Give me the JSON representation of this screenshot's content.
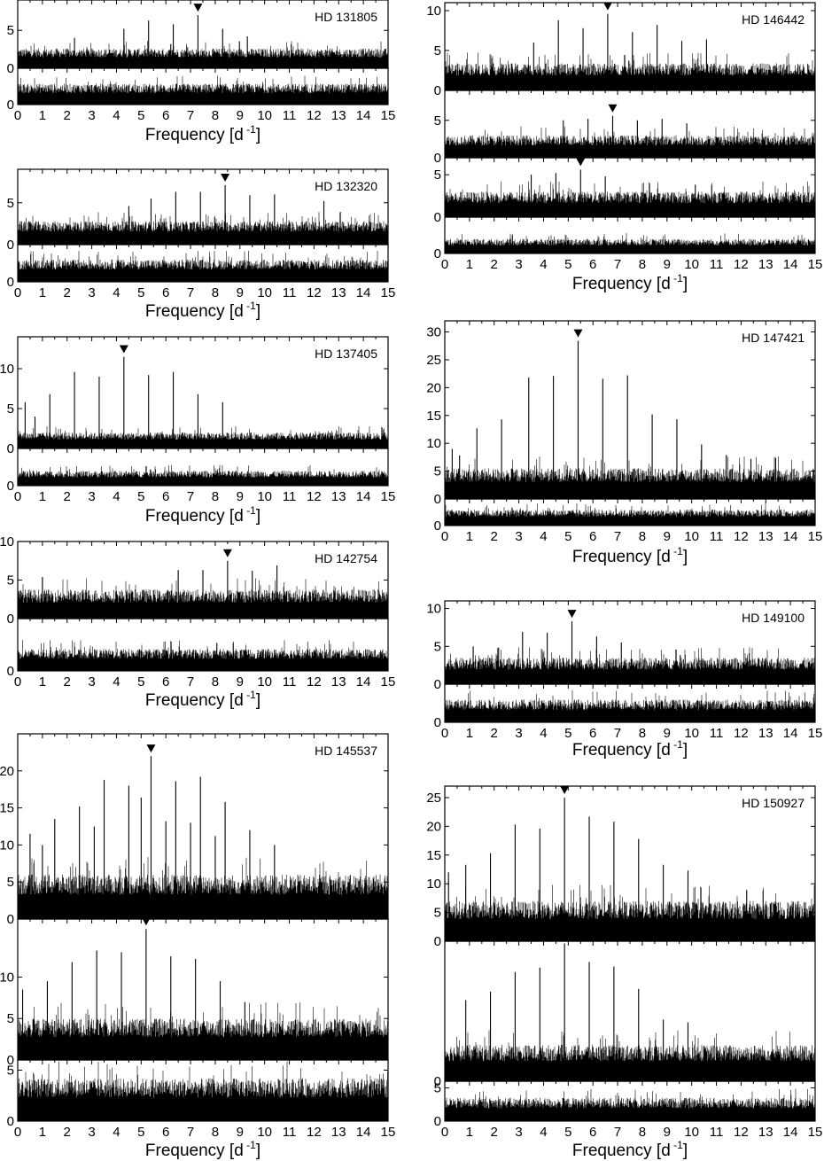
{
  "figure": {
    "x_axis_label": "Frequency [d",
    "x_axis_unit_exponent": "-1",
    "x_axis_label_close": "]",
    "x_ticks": [
      "0",
      "1",
      "2",
      "3",
      "4",
      "5",
      "6",
      "7",
      "8",
      "9",
      "10",
      "11",
      "12",
      "13",
      "14",
      "15"
    ]
  },
  "chart_data": [
    {
      "type": "line",
      "star": "HD 131805",
      "xlabel": "Frequency [d-1]",
      "xlim": [
        0,
        15
      ],
      "panels": [
        {
          "ylim": [
            0,
            9
          ],
          "yticks": [
            0,
            5
          ],
          "noise_level": 2.6,
          "marked_peak_x": 7.3,
          "peaks": [
            [
              4.3,
              5.2
            ],
            [
              5.3,
              6.3
            ],
            [
              6.3,
              5.8
            ],
            [
              7.3,
              7.0
            ],
            [
              8.3,
              5.2
            ],
            [
              9.3,
              4.2
            ],
            [
              2.3,
              4.0
            ]
          ]
        },
        {
          "ylim": [
            0,
            4
          ],
          "yticks": [
            0
          ],
          "noise_level": 2.3,
          "marked_peak_x": null,
          "peaks": []
        }
      ]
    },
    {
      "type": "line",
      "star": "HD 132320",
      "xlabel": "Frequency [d-1]",
      "xlim": [
        0,
        15
      ],
      "panels": [
        {
          "ylim": [
            0,
            9
          ],
          "yticks": [
            0,
            5
          ],
          "noise_level": 2.8,
          "marked_peak_x": 8.4,
          "peaks": [
            [
              4.5,
              4.6
            ],
            [
              5.4,
              5.5
            ],
            [
              6.4,
              6.3
            ],
            [
              7.4,
              6.3
            ],
            [
              8.4,
              7.1
            ],
            [
              9.4,
              5.9
            ],
            [
              10.4,
              6.0
            ],
            [
              12.4,
              5.2
            ]
          ]
        },
        {
          "ylim": [
            0,
            4
          ],
          "yticks": [
            0
          ],
          "noise_level": 2.4,
          "marked_peak_x": null,
          "peaks": []
        }
      ]
    },
    {
      "type": "line",
      "star": "HD 137405",
      "xlabel": "Frequency [d-1]",
      "xlim": [
        0,
        15
      ],
      "panels": [
        {
          "ylim": [
            0,
            14
          ],
          "yticks": [
            0,
            5,
            10
          ],
          "noise_level": 2.0,
          "marked_peak_x": 4.3,
          "peaks": [
            [
              0.3,
              5.8
            ],
            [
              1.3,
              6.8
            ],
            [
              2.3,
              9.6
            ],
            [
              3.3,
              9.0
            ],
            [
              4.3,
              11.5
            ],
            [
              5.3,
              9.2
            ],
            [
              6.3,
              9.6
            ],
            [
              7.3,
              6.8
            ],
            [
              8.3,
              5.8
            ],
            [
              0.7,
              4.0
            ]
          ]
        },
        {
          "ylim": [
            0,
            4
          ],
          "yticks": [
            0
          ],
          "noise_level": 1.6,
          "marked_peak_x": null,
          "peaks": []
        }
      ]
    },
    {
      "type": "line",
      "star": "HD 142754",
      "xlabel": "Frequency [d-1]",
      "xlim": [
        0,
        15
      ],
      "panels": [
        {
          "ylim": [
            0,
            10
          ],
          "yticks": [
            0,
            5,
            10
          ],
          "noise_level": 3.8,
          "marked_peak_x": 8.5,
          "peaks": [
            [
              6.5,
              6.3
            ],
            [
              7.5,
              6.3
            ],
            [
              8.5,
              7.5
            ],
            [
              9.5,
              6.2
            ],
            [
              10.5,
              6.9
            ],
            [
              1.0,
              5.4
            ]
          ]
        },
        {
          "ylim": [
            0,
            10
          ],
          "yticks": [
            0
          ],
          "noise_level": 4.2,
          "marked_peak_x": null,
          "peaks": []
        }
      ]
    },
    {
      "type": "line",
      "star": "HD 145537",
      "xlabel": "Frequency [d-1]",
      "xlim": [
        0,
        15
      ],
      "panels": [
        {
          "ylim": [
            0,
            25
          ],
          "yticks": [
            0,
            5,
            10,
            15,
            20
          ],
          "noise_level": 6.0,
          "marked_peak_x": 5.4,
          "peaks": [
            [
              0.5,
              11.5
            ],
            [
              1.5,
              13.5
            ],
            [
              2.5,
              15.2
            ],
            [
              3.5,
              18.8
            ],
            [
              4.5,
              18.0
            ],
            [
              5.4,
              22.0
            ],
            [
              6.4,
              18.6
            ],
            [
              7.4,
              19.2
            ],
            [
              8.4,
              15.8
            ],
            [
              9.4,
              12.0
            ],
            [
              1.0,
              10.0
            ],
            [
              3.1,
              12.5
            ],
            [
              5.0,
              16.4
            ],
            [
              6.0,
              13.2
            ],
            [
              7.0,
              13.0
            ],
            [
              8.0,
              11.2
            ],
            [
              10.4,
              10.0
            ]
          ]
        },
        {
          "ylim": [
            0,
            17
          ],
          "yticks": [
            0,
            5,
            10
          ],
          "noise_level": 5.0,
          "marked_peak_x": 5.2,
          "peaks": [
            [
              0.2,
              8.5
            ],
            [
              1.2,
              9.5
            ],
            [
              2.2,
              11.8
            ],
            [
              3.2,
              13.2
            ],
            [
              4.2,
              13.0
            ],
            [
              5.2,
              15.8
            ],
            [
              6.2,
              12.5
            ],
            [
              7.2,
              12.2
            ],
            [
              8.2,
              9.5
            ],
            [
              9.2,
              7.0
            ]
          ]
        },
        {
          "ylim": [
            0,
            6
          ],
          "yticks": [
            0,
            5
          ],
          "noise_level": 4.2,
          "marked_peak_x": null,
          "peaks": []
        }
      ]
    },
    {
      "type": "line",
      "star": "HD 146442",
      "xlabel": "Frequency [d-1]",
      "xlim": [
        0,
        15
      ],
      "panels": [
        {
          "ylim": [
            0,
            11
          ],
          "yticks": [
            0,
            5,
            10
          ],
          "noise_level": 3.4,
          "marked_peak_x": 6.6,
          "peaks": [
            [
              4.6,
              8.8
            ],
            [
              5.6,
              7.8
            ],
            [
              6.6,
              9.6
            ],
            [
              7.6,
              7.3
            ],
            [
              8.6,
              8.2
            ],
            [
              9.6,
              6.2
            ],
            [
              10.6,
              6.4
            ],
            [
              3.6,
              6.0
            ]
          ]
        },
        {
          "ylim": [
            0,
            9
          ],
          "yticks": [
            0,
            5
          ],
          "noise_level": 3.0,
          "marked_peak_x": 6.8,
          "peaks": [
            [
              4.8,
              5.0
            ],
            [
              5.8,
              5.2
            ],
            [
              6.8,
              5.6
            ],
            [
              7.8,
              5.0
            ],
            [
              8.8,
              5.2
            ],
            [
              9.8,
              4.6
            ]
          ]
        },
        {
          "ylim": [
            0,
            7
          ],
          "yticks": [
            0,
            5
          ],
          "noise_level": 3.0,
          "marked_peak_x": 5.5,
          "peaks": [
            [
              3.5,
              5.0
            ],
            [
              4.5,
              5.2
            ],
            [
              5.5,
              5.6
            ],
            [
              6.5,
              4.8
            ]
          ]
        },
        {
          "ylim": [
            0,
            5
          ],
          "yticks": [
            0
          ],
          "noise_level": 2.0,
          "marked_peak_x": null,
          "peaks": []
        }
      ]
    },
    {
      "type": "line",
      "star": "HD 147421",
      "xlabel": "Frequency [d-1]",
      "xlim": [
        0,
        15
      ],
      "panels": [
        {
          "ylim": [
            0,
            32
          ],
          "yticks": [
            0,
            5,
            10,
            15,
            20,
            25,
            30
          ],
          "noise_level": 5.5,
          "marked_peak_x": 5.4,
          "peaks": [
            [
              0.3,
              9.0
            ],
            [
              1.3,
              12.7
            ],
            [
              2.3,
              14.3
            ],
            [
              3.4,
              21.8
            ],
            [
              4.4,
              22.1
            ],
            [
              5.4,
              28.4
            ],
            [
              6.4,
              21.6
            ],
            [
              7.4,
              22.2
            ],
            [
              8.4,
              15.2
            ],
            [
              9.4,
              14.3
            ],
            [
              10.4,
              9.8
            ],
            [
              11.4,
              7.9
            ],
            [
              12.4,
              7.2
            ],
            [
              13.4,
              7.4
            ],
            [
              0.6,
              7.8
            ]
          ]
        },
        {
          "ylim": [
            0,
            4
          ],
          "yticks": [
            0
          ],
          "noise_level": 2.4,
          "marked_peak_x": null,
          "peaks": []
        }
      ]
    },
    {
      "type": "line",
      "star": "HD 149100",
      "xlabel": "Frequency [d-1]",
      "xlim": [
        0,
        15
      ],
      "panels": [
        {
          "ylim": [
            0,
            11
          ],
          "yticks": [
            0,
            5,
            10
          ],
          "noise_level": 3.5,
          "marked_peak_x": 5.15,
          "peaks": [
            [
              1.15,
              5.0
            ],
            [
              2.15,
              4.8
            ],
            [
              3.15,
              6.9
            ],
            [
              4.15,
              6.8
            ],
            [
              5.15,
              8.3
            ],
            [
              6.15,
              6.3
            ],
            [
              7.15,
              5.5
            ]
          ]
        },
        {
          "ylim": [
            0,
            5
          ],
          "yticks": [
            0
          ],
          "noise_level": 3.0,
          "marked_peak_x": null,
          "peaks": []
        }
      ]
    },
    {
      "type": "line",
      "star": "HD 150927",
      "xlabel": "Frequency [d-1]",
      "xlim": [
        0,
        15
      ],
      "panels": [
        {
          "ylim": [
            0,
            27
          ],
          "yticks": [
            0,
            5,
            10,
            15,
            20,
            25
          ],
          "noise_level": 7.0,
          "marked_peak_x": 4.85,
          "peaks": [
            [
              0.85,
              13.3
            ],
            [
              1.85,
              15.3
            ],
            [
              2.85,
              20.3
            ],
            [
              3.85,
              19.6
            ],
            [
              4.85,
              25.0
            ],
            [
              5.85,
              21.7
            ],
            [
              6.85,
              20.8
            ],
            [
              7.85,
              17.8
            ],
            [
              8.85,
              13.3
            ],
            [
              9.85,
              12.3
            ],
            [
              0.15,
              12.0
            ]
          ]
        },
        {
          "ylim": [
            0,
            25
          ],
          "yticks": [
            0
          ],
          "noise_level": 6.5,
          "marked_peak_x": 4.85,
          "peaks": [
            [
              0.85,
              14.5
            ],
            [
              1.85,
              16.0
            ],
            [
              2.85,
              19.5
            ],
            [
              3.85,
              20.3
            ],
            [
              4.85,
              24.6
            ],
            [
              5.85,
              21.3
            ],
            [
              6.85,
              20.5
            ],
            [
              7.85,
              16.5
            ],
            [
              8.85,
              11.0
            ],
            [
              9.85,
              10.5
            ]
          ]
        },
        {
          "ylim": [
            0,
            6
          ],
          "yticks": [
            0,
            5
          ],
          "noise_level": 3.5,
          "marked_peak_x": null,
          "peaks": []
        }
      ]
    }
  ]
}
